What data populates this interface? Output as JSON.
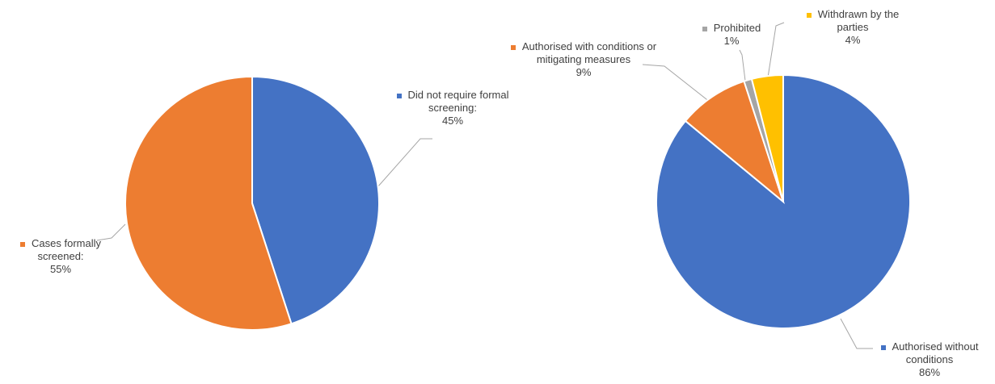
{
  "chart_data": [
    {
      "type": "pie",
      "categories": [
        "Did not require formal screening:",
        "Cases formally screened:"
      ],
      "values": [
        45,
        55
      ],
      "value_labels": [
        "45%",
        "55%"
      ],
      "colors": [
        "#4472c4",
        "#ed7d31"
      ]
    },
    {
      "type": "pie",
      "categories": [
        "Authorised without conditions",
        "Authorised with conditions or mitigating measures",
        "Prohibited",
        "Withdrawn by the parties"
      ],
      "values": [
        86,
        9,
        1,
        4
      ],
      "value_labels": [
        "86%",
        "9%",
        "1%",
        "4%"
      ],
      "colors": [
        "#4472c4",
        "#ed7d31",
        "#a5a5a5",
        "#ffc000"
      ]
    }
  ]
}
